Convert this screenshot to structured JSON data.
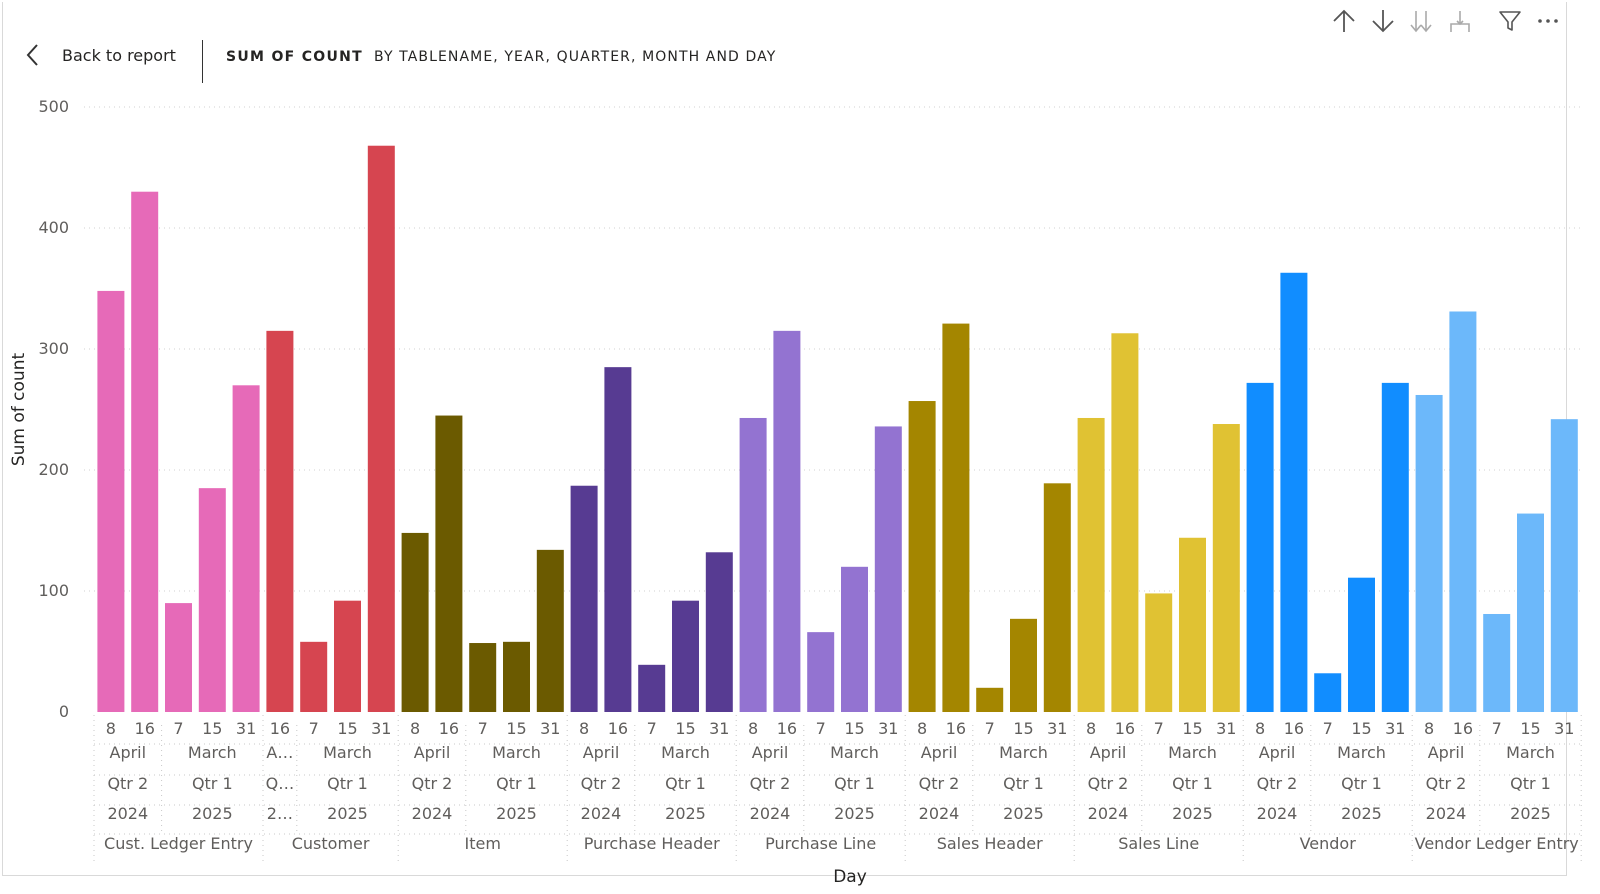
{
  "header": {
    "back_label": "Back to report",
    "title": "SUM OF COUNT",
    "subtitle": "BY TABLENAME, YEAR, QUARTER, MONTH AND DAY"
  },
  "toolbar": {
    "icons": [
      "arrow-up-icon",
      "arrow-down-icon",
      "drill-down-icon",
      "expand-hierarchy-icon",
      "filter-icon",
      "more-options-icon"
    ]
  },
  "chart_data": {
    "type": "bar",
    "xlabel": "Day",
    "ylabel": "Sum of count",
    "ylim": [
      0,
      500
    ],
    "yticks": [
      0,
      100,
      200,
      300,
      400,
      500
    ],
    "grid": true,
    "groups": [
      {
        "name": "Cust. Ledger Entry",
        "color": "#E66AB8",
        "years": [
          {
            "year": "2024",
            "quarter": "Qtr 2",
            "month": "April",
            "days": [
              "8",
              "16"
            ],
            "values": [
              348,
              430
            ]
          },
          {
            "year": "2025",
            "quarter": "Qtr 1",
            "month": "March",
            "days": [
              "7",
              "15",
              "31"
            ],
            "values": [
              90,
              185,
              270
            ]
          }
        ]
      },
      {
        "name": "Customer",
        "color": "#D64550",
        "years": [
          {
            "year": "2…",
            "quarter": "Q…",
            "month": "A…",
            "days": [
              "16"
            ],
            "values": [
              315
            ]
          },
          {
            "year": "2025",
            "quarter": "Qtr 1",
            "month": "March",
            "days": [
              "7",
              "15",
              "31"
            ],
            "values": [
              58,
              92,
              468
            ]
          }
        ]
      },
      {
        "name": "Item",
        "color": "#6B5A00",
        "years": [
          {
            "year": "2024",
            "quarter": "Qtr 2",
            "month": "April",
            "days": [
              "8",
              "16"
            ],
            "values": [
              148,
              245
            ]
          },
          {
            "year": "2025",
            "quarter": "Qtr 1",
            "month": "March",
            "days": [
              "7",
              "15",
              "31"
            ],
            "values": [
              57,
              58,
              134
            ]
          }
        ]
      },
      {
        "name": "Purchase Header",
        "color": "#573B92",
        "years": [
          {
            "year": "2024",
            "quarter": "Qtr 2",
            "month": "April",
            "days": [
              "8",
              "16"
            ],
            "values": [
              187,
              285
            ]
          },
          {
            "year": "2025",
            "quarter": "Qtr 1",
            "month": "March",
            "days": [
              "7",
              "15",
              "31"
            ],
            "values": [
              39,
              92,
              132
            ]
          }
        ]
      },
      {
        "name": "Purchase Line",
        "color": "#9373D1",
        "years": [
          {
            "year": "2024",
            "quarter": "Qtr 2",
            "month": "April",
            "days": [
              "8",
              "16"
            ],
            "values": [
              243,
              315
            ]
          },
          {
            "year": "2025",
            "quarter": "Qtr 1",
            "month": "March",
            "days": [
              "7",
              "15",
              "31"
            ],
            "values": [
              66,
              120,
              236
            ]
          }
        ]
      },
      {
        "name": "Sales Header",
        "color": "#A48600",
        "years": [
          {
            "year": "2024",
            "quarter": "Qtr 2",
            "month": "April",
            "days": [
              "8",
              "16"
            ],
            "values": [
              257,
              321
            ]
          },
          {
            "year": "2025",
            "quarter": "Qtr 1",
            "month": "March",
            "days": [
              "7",
              "15",
              "31"
            ],
            "values": [
              20,
              77,
              189
            ]
          }
        ]
      },
      {
        "name": "Sales Line",
        "color": "#E0C233",
        "years": [
          {
            "year": "2024",
            "quarter": "Qtr 2",
            "month": "April",
            "days": [
              "8",
              "16"
            ],
            "values": [
              243,
              313
            ]
          },
          {
            "year": "2025",
            "quarter": "Qtr 1",
            "month": "March",
            "days": [
              "7",
              "15",
              "31"
            ],
            "values": [
              98,
              144,
              238
            ]
          }
        ]
      },
      {
        "name": "Vendor",
        "color": "#118DFF",
        "years": [
          {
            "year": "2024",
            "quarter": "Qtr 2",
            "month": "April",
            "days": [
              "8",
              "16"
            ],
            "values": [
              272,
              363
            ]
          },
          {
            "year": "2025",
            "quarter": "Qtr 1",
            "month": "March",
            "days": [
              "7",
              "15",
              "31"
            ],
            "values": [
              32,
              111,
              272
            ]
          }
        ]
      },
      {
        "name": "Vendor Ledger Entry",
        "color": "#6CB8FA",
        "years": [
          {
            "year": "2024",
            "quarter": "Qtr 2",
            "month": "April",
            "days": [
              "8",
              "16"
            ],
            "values": [
              262,
              331
            ]
          },
          {
            "year": "2025",
            "quarter": "Qtr 1",
            "month": "March",
            "days": [
              "7",
              "15",
              "31"
            ],
            "values": [
              81,
              164,
              242
            ]
          }
        ]
      }
    ]
  }
}
